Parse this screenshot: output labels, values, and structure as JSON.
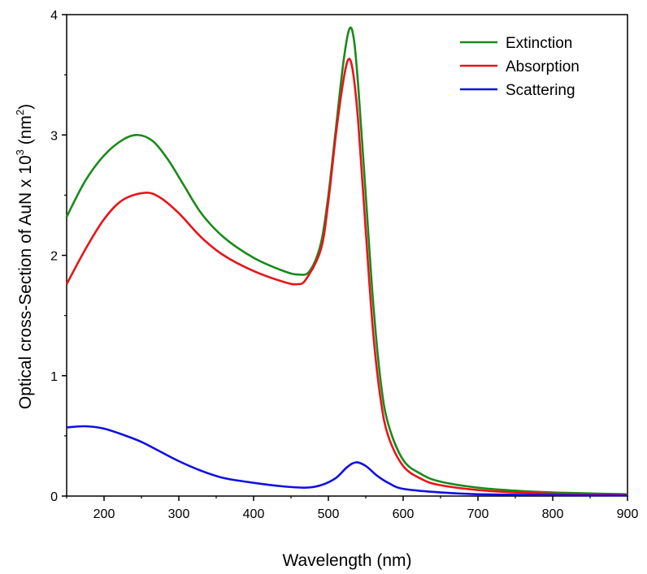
{
  "chart_data": {
    "type": "line",
    "xlabel": "Wavelength (nm)",
    "ylabel": {
      "prefix": "Optical cross-Section of AuN x 10",
      "exp": "3",
      "mid": " (nm",
      "unit_exp": "2",
      "suffix": ")"
    },
    "xlim": [
      150,
      900
    ],
    "ylim": [
      0,
      4
    ],
    "xticks": [
      200,
      300,
      400,
      500,
      600,
      700,
      800,
      900
    ],
    "yticks": [
      0,
      1,
      2,
      3,
      4
    ],
    "legend_position": "top-right",
    "grid": false,
    "series": [
      {
        "name": "Extinction",
        "color": "#1a8a1a",
        "points": [
          [
            150,
            2.32
          ],
          [
            175,
            2.62
          ],
          [
            200,
            2.83
          ],
          [
            225,
            2.96
          ],
          [
            245,
            3.0
          ],
          [
            265,
            2.95
          ],
          [
            285,
            2.8
          ],
          [
            305,
            2.6
          ],
          [
            330,
            2.35
          ],
          [
            360,
            2.15
          ],
          [
            400,
            1.98
          ],
          [
            440,
            1.87
          ],
          [
            460,
            1.84
          ],
          [
            475,
            1.87
          ],
          [
            490,
            2.1
          ],
          [
            500,
            2.5
          ],
          [
            510,
            3.05
          ],
          [
            520,
            3.6
          ],
          [
            528,
            3.88
          ],
          [
            534,
            3.8
          ],
          [
            540,
            3.4
          ],
          [
            550,
            2.5
          ],
          [
            560,
            1.6
          ],
          [
            570,
            0.95
          ],
          [
            580,
            0.6
          ],
          [
            600,
            0.3
          ],
          [
            625,
            0.18
          ],
          [
            650,
            0.12
          ],
          [
            700,
            0.07
          ],
          [
            750,
            0.045
          ],
          [
            800,
            0.03
          ],
          [
            850,
            0.022
          ],
          [
            900,
            0.015
          ]
        ]
      },
      {
        "name": "Absorption",
        "color": "#e8141a",
        "points": [
          [
            150,
            1.76
          ],
          [
            175,
            2.05
          ],
          [
            200,
            2.3
          ],
          [
            225,
            2.46
          ],
          [
            255,
            2.52
          ],
          [
            275,
            2.48
          ],
          [
            300,
            2.35
          ],
          [
            330,
            2.15
          ],
          [
            360,
            2.0
          ],
          [
            400,
            1.87
          ],
          [
            440,
            1.78
          ],
          [
            458,
            1.76
          ],
          [
            470,
            1.8
          ],
          [
            490,
            2.05
          ],
          [
            500,
            2.45
          ],
          [
            510,
            3.0
          ],
          [
            520,
            3.45
          ],
          [
            527,
            3.63
          ],
          [
            533,
            3.52
          ],
          [
            540,
            3.1
          ],
          [
            550,
            2.2
          ],
          [
            560,
            1.35
          ],
          [
            570,
            0.8
          ],
          [
            580,
            0.5
          ],
          [
            600,
            0.25
          ],
          [
            625,
            0.14
          ],
          [
            650,
            0.09
          ],
          [
            700,
            0.05
          ],
          [
            750,
            0.03
          ],
          [
            800,
            0.02
          ],
          [
            850,
            0.013
          ],
          [
            900,
            0.01
          ]
        ]
      },
      {
        "name": "Scattering",
        "color": "#1010e0",
        "points": [
          [
            150,
            0.57
          ],
          [
            175,
            0.58
          ],
          [
            200,
            0.56
          ],
          [
            225,
            0.51
          ],
          [
            250,
            0.45
          ],
          [
            275,
            0.37
          ],
          [
            300,
            0.29
          ],
          [
            330,
            0.21
          ],
          [
            360,
            0.15
          ],
          [
            400,
            0.11
          ],
          [
            440,
            0.08
          ],
          [
            470,
            0.07
          ],
          [
            490,
            0.09
          ],
          [
            510,
            0.15
          ],
          [
            525,
            0.24
          ],
          [
            537,
            0.28
          ],
          [
            550,
            0.25
          ],
          [
            565,
            0.17
          ],
          [
            580,
            0.11
          ],
          [
            600,
            0.06
          ],
          [
            650,
            0.03
          ],
          [
            700,
            0.015
          ],
          [
            800,
            0.008
          ],
          [
            900,
            0.005
          ]
        ]
      }
    ]
  }
}
